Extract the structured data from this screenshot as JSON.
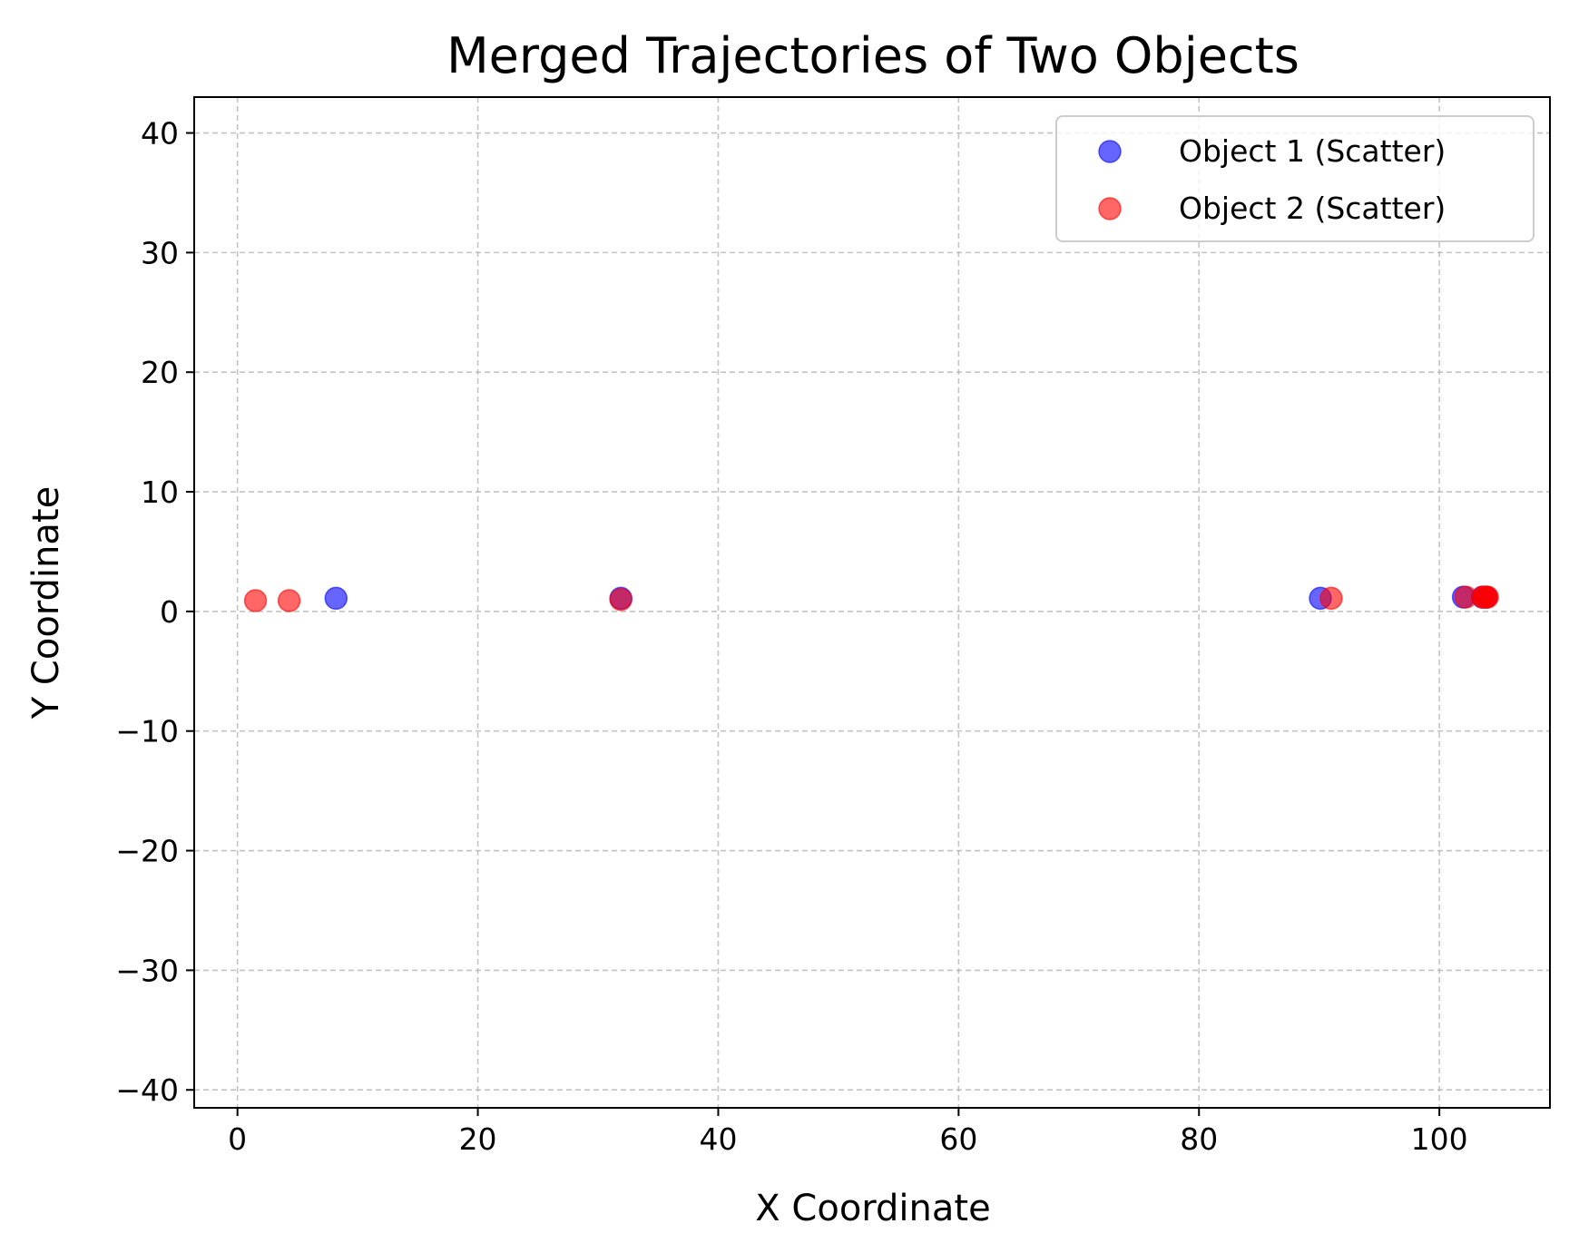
{
  "chart_data": {
    "type": "scatter",
    "title": "Merged Trajectories of Two Objects",
    "xlabel": "X Coordinate",
    "ylabel": "Y Coordinate",
    "xlim": [
      -3.6,
      109.2
    ],
    "ylim": [
      -41.5,
      43.0
    ],
    "xticks": [
      0,
      20,
      40,
      60,
      80,
      100
    ],
    "yticks": [
      -40,
      -30,
      -20,
      -10,
      0,
      10,
      20,
      30,
      40
    ],
    "grid": true,
    "legend_position": "top-right",
    "series": [
      {
        "name": "Object 1 (Scatter)",
        "color": "#0000ff",
        "alpha": 0.6,
        "points": [
          {
            "x": 8.2,
            "y": 1.1
          },
          {
            "x": 31.9,
            "y": 1.1
          },
          {
            "x": 90.1,
            "y": 1.1
          },
          {
            "x": 102.0,
            "y": 1.2
          },
          {
            "x": 103.6,
            "y": 1.2
          },
          {
            "x": 103.9,
            "y": 1.2
          }
        ]
      },
      {
        "name": "Object 2 (Scatter)",
        "color": "#ff0000",
        "alpha": 0.6,
        "points": [
          {
            "x": 1.5,
            "y": 0.9
          },
          {
            "x": 4.3,
            "y": 0.9
          },
          {
            "x": 31.9,
            "y": 1.0
          },
          {
            "x": 91.0,
            "y": 1.1
          },
          {
            "x": 102.2,
            "y": 1.2
          },
          {
            "x": 103.6,
            "y": 1.2
          },
          {
            "x": 103.8,
            "y": 1.2
          },
          {
            "x": 103.9,
            "y": 1.2
          },
          {
            "x": 104.0,
            "y": 1.2
          }
        ]
      }
    ]
  }
}
